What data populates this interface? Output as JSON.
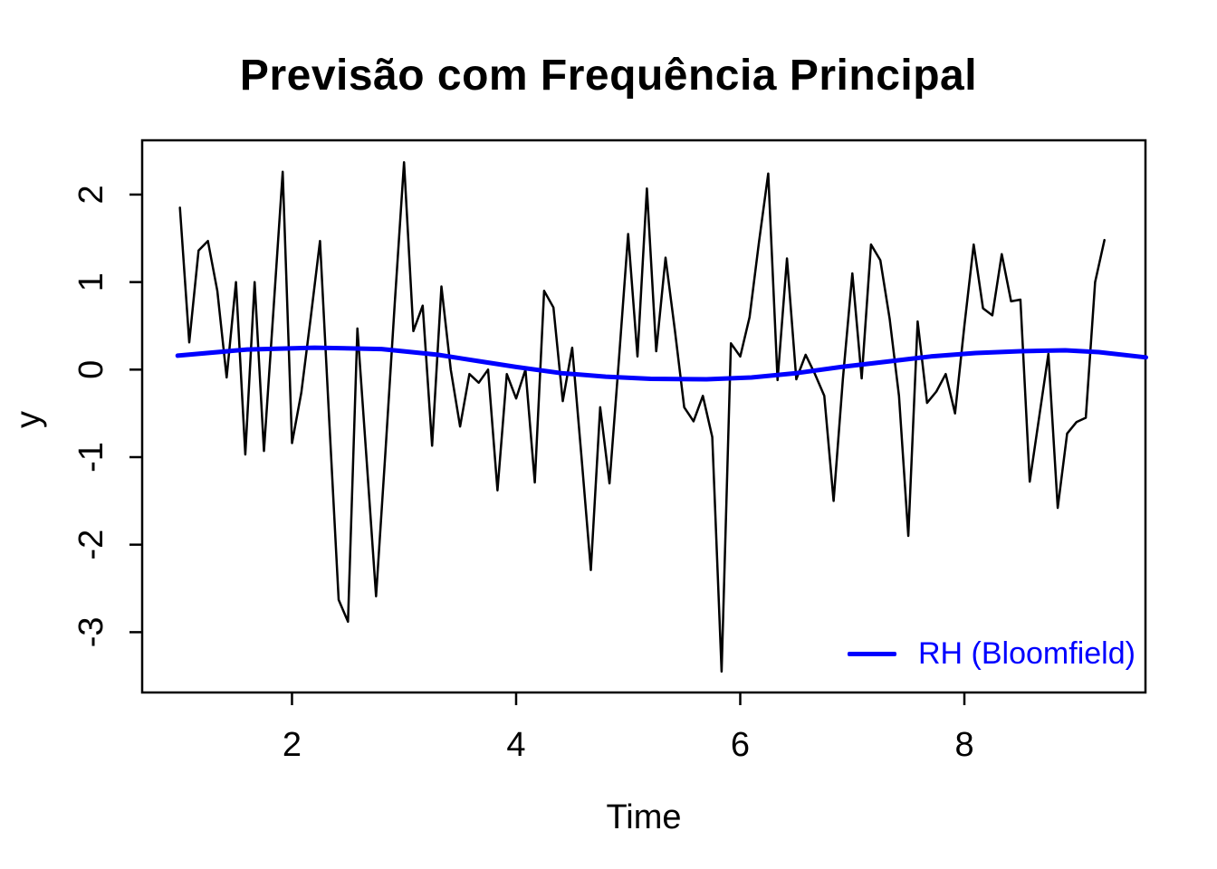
{
  "colors": {
    "background": "#ffffff",
    "axis": "#000000",
    "observed_series": "#000000",
    "fit_series": "#0000ff"
  },
  "chart_data": {
    "type": "line",
    "title": "Previsão com Frequência Principal",
    "xlabel": "Time",
    "ylabel": "y",
    "xlim": [
      0.663,
      9.616
    ],
    "ylim": [
      -3.689,
      2.62
    ],
    "x_ticks": [
      "2",
      "4",
      "6",
      "8"
    ],
    "x_tick_values": [
      2,
      4,
      6,
      8
    ],
    "y_ticks": [
      "2",
      "1",
      "0",
      "-1",
      "-2",
      "-3"
    ],
    "y_tick_values": [
      2,
      1,
      0,
      -1,
      -2,
      -3
    ],
    "grid": false,
    "legend": {
      "label": "RH (Bloomfield)",
      "color": "#0000ff",
      "position": "bottom-right"
    },
    "series": [
      {
        "id": "observed",
        "name": "y (observed series)",
        "color": "#000000",
        "width": 2.5,
        "x_start": 1.0,
        "x_step": 0.0833333,
        "values": [
          1.85,
          0.31,
          1.36,
          1.47,
          0.9,
          -0.09,
          1.0,
          -0.97,
          1.0,
          -0.93,
          0.65,
          2.26,
          -0.84,
          -0.26,
          0.59,
          1.47,
          -0.6,
          -2.63,
          -2.88,
          0.47,
          -1.05,
          -2.59,
          -0.95,
          0.75,
          2.37,
          0.44,
          0.73,
          -0.87,
          0.95,
          0.0,
          -0.65,
          -0.05,
          -0.15,
          0.0,
          -1.38,
          -0.05,
          -0.33,
          0.0,
          -1.29,
          0.9,
          0.71,
          -0.36,
          0.25,
          -1.0,
          -2.29,
          -0.43,
          -1.3,
          0.1,
          1.55,
          0.15,
          2.07,
          0.21,
          1.28,
          0.45,
          -0.43,
          -0.59,
          -0.3,
          -0.77,
          -3.45,
          0.3,
          0.15,
          0.6,
          1.45,
          2.24,
          -0.12,
          1.27,
          -0.11,
          0.17,
          -0.05,
          -0.3,
          -1.5,
          -0.1,
          1.1,
          -0.1,
          1.43,
          1.25,
          0.58,
          -0.3,
          -1.9,
          0.55,
          -0.38,
          -0.25,
          -0.05,
          -0.5,
          0.5,
          1.43,
          0.7,
          0.62,
          1.32,
          0.78,
          0.8,
          -1.28,
          -0.55,
          0.18,
          -1.58,
          -0.73,
          -0.6,
          -0.55,
          1.0,
          1.48
        ]
      },
      {
        "id": "fit",
        "name": "RH (Bloomfield)",
        "color": "#0000ff",
        "width": 5,
        "x": [
          0.98,
          1.6,
          2.2,
          2.8,
          3.3,
          3.7,
          4.0,
          4.4,
          4.8,
          5.2,
          5.7,
          6.1,
          6.5,
          6.9,
          7.3,
          7.7,
          8.1,
          8.5,
          8.9,
          9.2,
          9.62
        ],
        "values": [
          0.16,
          0.23,
          0.25,
          0.235,
          0.17,
          0.09,
          0.03,
          -0.04,
          -0.08,
          -0.105,
          -0.11,
          -0.09,
          -0.04,
          0.03,
          0.09,
          0.15,
          0.19,
          0.21,
          0.22,
          0.2,
          0.14
        ]
      }
    ]
  }
}
